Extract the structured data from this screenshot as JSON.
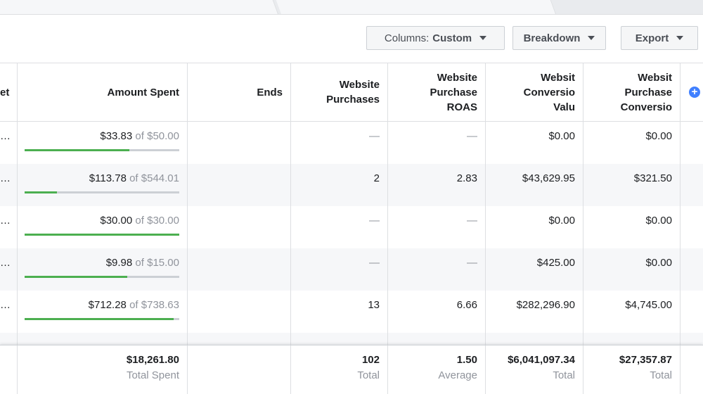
{
  "toolbar": {
    "columns_button": {
      "label": "Columns:",
      "value": "Custom"
    },
    "breakdown_button": "Breakdown",
    "export_button": "Export"
  },
  "table": {
    "headers": [
      [
        "et"
      ],
      [
        "Amount Spent"
      ],
      [
        "Ends"
      ],
      [
        "Website",
        "Purchases"
      ],
      [
        "Website",
        "Purchase",
        "ROAS"
      ],
      [
        "Websit",
        "Conversio",
        "Valu"
      ],
      [
        "Websit",
        "Purchase",
        "Conversio"
      ]
    ],
    "rows": [
      {
        "lead": "…",
        "spent": "$33.83",
        "separator": "of",
        "budget": "$50.00",
        "ends": null,
        "purchases": "—",
        "roas": "—",
        "conversion_value": "$0.00",
        "purchase_conversion": "$0.00"
      },
      {
        "lead": "…",
        "spent": "$113.78",
        "separator": "of",
        "budget": "$544.01",
        "ends": null,
        "purchases": "2",
        "roas": "2.83",
        "conversion_value": "$43,629.95",
        "purchase_conversion": "$321.50"
      },
      {
        "lead": "…",
        "spent": "$30.00",
        "separator": "of",
        "budget": "$30.00",
        "ends": null,
        "purchases": "—",
        "roas": "—",
        "conversion_value": "$0.00",
        "purchase_conversion": "$0.00"
      },
      {
        "lead": "…",
        "spent": "$9.98",
        "separator": "of",
        "budget": "$15.00",
        "ends": null,
        "purchases": "—",
        "roas": "—",
        "conversion_value": "$425.00",
        "purchase_conversion": "$0.00"
      },
      {
        "lead": "…",
        "spent": "$712.28",
        "separator": "of",
        "budget": "$738.63",
        "ends": null,
        "purchases": "13",
        "roas": "6.66",
        "conversion_value": "$282,296.90",
        "purchase_conversion": "$4,745.00"
      }
    ],
    "footer": [
      {
        "column": 1,
        "value": "$18,261.80",
        "label": "Total Spent"
      },
      {
        "column": 3,
        "value": "102",
        "label": "Total"
      },
      {
        "column": 4,
        "value": "1.50",
        "label": "Average"
      },
      {
        "column": 5,
        "value": "$6,041,097.34",
        "label": "Total"
      },
      {
        "column": 6,
        "value": "$27,357.87",
        "label": "Total"
      }
    ]
  }
}
